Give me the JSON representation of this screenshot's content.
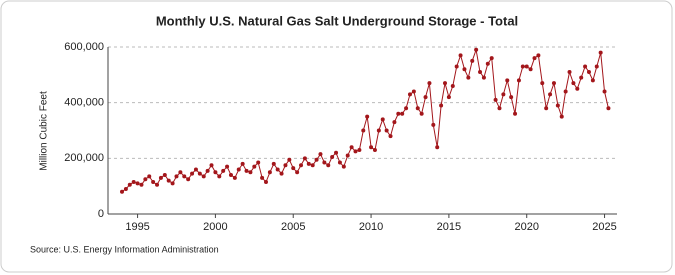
{
  "chart_data": {
    "type": "line",
    "title": "Monthly U.S. Natural Gas Salt Underground Storage - Total",
    "y_label": "Million Cubic Feet",
    "source": "Source: U.S. Energy Information Administration",
    "color": "#a3161b",
    "grid": true,
    "xlim": [
      1993.1,
      2025.8
    ],
    "xticks": [
      1995,
      2000,
      2005,
      2010,
      2015,
      2020,
      2025
    ],
    "ylim": [
      0,
      600000
    ],
    "yticks": [
      0,
      {
        "value": 200000,
        "label": "200,000"
      },
      {
        "value": 400000,
        "label": "400,000"
      },
      {
        "value": 600000,
        "label": "600,000"
      }
    ],
    "x": [
      1994.0,
      1994.25,
      1994.5,
      1994.75,
      1995.0,
      1995.25,
      1995.5,
      1995.75,
      1996.0,
      1996.25,
      1996.5,
      1996.75,
      1997.0,
      1997.25,
      1997.5,
      1997.75,
      1998.0,
      1998.25,
      1998.5,
      1998.75,
      1999.0,
      1999.25,
      1999.5,
      1999.75,
      2000.0,
      2000.25,
      2000.5,
      2000.75,
      2001.0,
      2001.25,
      2001.5,
      2001.75,
      2002.0,
      2002.25,
      2002.5,
      2002.75,
      2003.0,
      2003.25,
      2003.5,
      2003.75,
      2004.0,
      2004.25,
      2004.5,
      2004.75,
      2005.0,
      2005.25,
      2005.5,
      2005.75,
      2006.0,
      2006.25,
      2006.5,
      2006.75,
      2007.0,
      2007.25,
      2007.5,
      2007.75,
      2008.0,
      2008.25,
      2008.5,
      2008.75,
      2009.0,
      2009.25,
      2009.5,
      2009.75,
      2010.0,
      2010.25,
      2010.5,
      2010.75,
      2011.0,
      2011.25,
      2011.5,
      2011.75,
      2012.0,
      2012.25,
      2012.5,
      2012.75,
      2013.0,
      2013.25,
      2013.5,
      2013.75,
      2014.0,
      2014.25,
      2014.5,
      2014.75,
      2015.0,
      2015.25,
      2015.5,
      2015.75,
      2016.0,
      2016.25,
      2016.5,
      2016.75,
      2017.0,
      2017.25,
      2017.5,
      2017.75,
      2018.0,
      2018.25,
      2018.5,
      2018.75,
      2019.0,
      2019.25,
      2019.5,
      2019.75,
      2020.0,
      2020.25,
      2020.5,
      2020.75,
      2021.0,
      2021.25,
      2021.5,
      2021.75,
      2022.0,
      2022.25,
      2022.5,
      2022.75,
      2023.0,
      2023.25,
      2023.5,
      2023.75,
      2024.0,
      2024.25,
      2024.5,
      2024.75,
      2025.0,
      2025.25
    ],
    "values": [
      80000,
      90000,
      105000,
      115000,
      110000,
      105000,
      125000,
      135000,
      115000,
      105000,
      130000,
      140000,
      120000,
      110000,
      135000,
      150000,
      135000,
      125000,
      145000,
      160000,
      145000,
      135000,
      155000,
      175000,
      150000,
      135000,
      155000,
      170000,
      140000,
      130000,
      160000,
      180000,
      155000,
      150000,
      170000,
      185000,
      130000,
      115000,
      150000,
      180000,
      160000,
      145000,
      175000,
      195000,
      165000,
      150000,
      175000,
      200000,
      180000,
      175000,
      195000,
      215000,
      185000,
      175000,
      205000,
      220000,
      185000,
      170000,
      210000,
      240000,
      225000,
      230000,
      300000,
      350000,
      240000,
      230000,
      300000,
      340000,
      300000,
      280000,
      330000,
      360000,
      360000,
      380000,
      430000,
      440000,
      380000,
      360000,
      420000,
      470000,
      320000,
      240000,
      390000,
      470000,
      420000,
      460000,
      530000,
      570000,
      520000,
      490000,
      550000,
      590000,
      510000,
      490000,
      540000,
      560000,
      410000,
      380000,
      430000,
      480000,
      420000,
      360000,
      480000,
      530000,
      530000,
      520000,
      560000,
      570000,
      470000,
      380000,
      430000,
      470000,
      390000,
      350000,
      440000,
      510000,
      470000,
      450000,
      490000,
      530000,
      510000,
      480000,
      530000,
      580000,
      440000,
      380000
    ]
  }
}
